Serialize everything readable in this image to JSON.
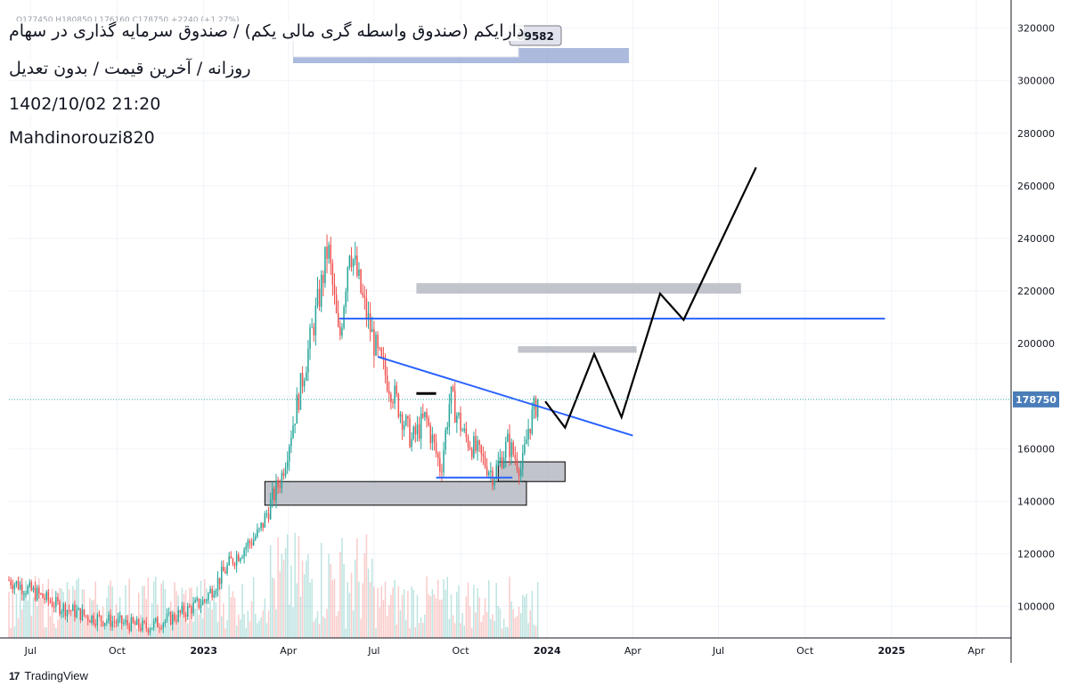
{
  "header": {
    "title": "دارایکم (صندوق واسطه گری مالی یکم) / صندوق سرمایه گذاری در سهام",
    "subtitle": "روزانه / آخرین قیمت / بدون تعدیل",
    "datetime": "1402/10/02 21:20",
    "author": "Mahdinorouzi820",
    "ohlc": "O177450 H180850 L176160 C178750 +2240 (+1.27%)"
  },
  "tooltip_value": "09582",
  "brand": {
    "logo": "17",
    "name": "TradingView"
  },
  "colors": {
    "up": "#26a69a",
    "down": "#ef5350",
    "trendline": "#2962ff",
    "zone": "#b2b5be",
    "projection": "#000000",
    "last_price_label": "#4a7db8",
    "tooltip_band": "#8fa3d1"
  },
  "chart_data": {
    "type": "candlestick",
    "y_axis": {
      "ylim": [
        88000,
        328000
      ],
      "ticks": [
        100000,
        120000,
        140000,
        160000,
        180000,
        200000,
        220000,
        240000,
        260000,
        280000,
        300000,
        320000
      ],
      "tick_labels": [
        "100000",
        "120000",
        "140000",
        "160000",
        "180000",
        "200000",
        "220000",
        "240000",
        "260000",
        "280000",
        "300000",
        "320000"
      ]
    },
    "x_axis": {
      "range": [
        "2022-06-08",
        "2025-05-08"
      ],
      "ticks": [
        "2022-07-01",
        "2022-10-01",
        "2023-01-01",
        "2023-04-01",
        "2023-07-01",
        "2023-10-01",
        "2024-01-01",
        "2024-04-01",
        "2024-07-01",
        "2024-10-01",
        "2025-01-01",
        "2025-04-01"
      ],
      "tick_labels": [
        "Jul",
        "Oct",
        "2023",
        "Apr",
        "Jul",
        "Oct",
        "2024",
        "Apr",
        "Jul",
        "Oct",
        "2025",
        "Apr"
      ],
      "bold_ticks": [
        "2023",
        "2024",
        "2025"
      ]
    },
    "last_price": 178750,
    "grid": true,
    "price_path": [
      [
        "2022-06-08",
        110000
      ],
      [
        "2022-07-01",
        106000
      ],
      [
        "2022-08-01",
        100000
      ],
      [
        "2022-09-01",
        96000
      ],
      [
        "2022-10-01",
        94000
      ],
      [
        "2022-11-01",
        92000
      ],
      [
        "2022-12-01",
        96000
      ],
      [
        "2023-01-01",
        102000
      ],
      [
        "2023-02-01",
        118000
      ],
      [
        "2023-03-01",
        128000
      ],
      [
        "2023-03-25",
        150000
      ],
      [
        "2023-04-15",
        185000
      ],
      [
        "2023-05-05",
        220000
      ],
      [
        "2023-05-13",
        237000
      ],
      [
        "2023-05-25",
        200000
      ],
      [
        "2023-06-05",
        238000
      ],
      [
        "2023-06-20",
        215000
      ],
      [
        "2023-07-05",
        195000
      ],
      [
        "2023-07-25",
        178000
      ],
      [
        "2023-08-10",
        163000
      ],
      [
        "2023-08-25",
        172000
      ],
      [
        "2023-09-10",
        152000
      ],
      [
        "2023-09-20",
        180000
      ],
      [
        "2023-10-05",
        165000
      ],
      [
        "2023-10-20",
        158000
      ],
      [
        "2023-11-05",
        150000
      ],
      [
        "2023-11-20",
        162000
      ],
      [
        "2023-12-05",
        152000
      ],
      [
        "2023-12-12",
        168000
      ],
      [
        "2023-12-22",
        178750
      ]
    ],
    "volume": {
      "note": "relative volume bars",
      "max": 1
    },
    "drawings": {
      "trendlines": [
        {
          "from": [
            "2023-07-05",
            195000
          ],
          "to": [
            "2024-04-01",
            165000
          ]
        },
        {
          "from": [
            "2023-05-25",
            209500
          ],
          "to": [
            "2024-12-25",
            209500
          ]
        },
        {
          "from": [
            "2023-09-05",
            149000
          ],
          "to": [
            "2023-11-25",
            149000
          ]
        }
      ],
      "black_segments": [
        {
          "from": [
            "2023-08-15",
            181000
          ],
          "to": [
            "2023-09-05",
            181000
          ]
        }
      ],
      "zones": [
        {
          "from": "2023-08-15",
          "to": "2024-07-25",
          "y1": 219000,
          "y2": 223000
        },
        {
          "from": "2023-12-01",
          "to": "2024-04-05",
          "y1": 196500,
          "y2": 199000
        },
        {
          "from": "2023-11-10",
          "to": "2024-01-20",
          "y1": 147500,
          "y2": 155000
        },
        {
          "from": "2023-03-07",
          "to": "2023-12-10",
          "y1": 138500,
          "y2": 147500
        }
      ],
      "projection": [
        [
          "2023-12-30",
          178000
        ],
        [
          "2024-01-20",
          168000
        ],
        [
          "2024-02-20",
          196000
        ],
        [
          "2024-03-20",
          172000
        ],
        [
          "2024-04-30",
          219000
        ],
        [
          "2024-05-25",
          209000
        ],
        [
          "2024-08-10",
          267000
        ]
      ]
    }
  }
}
